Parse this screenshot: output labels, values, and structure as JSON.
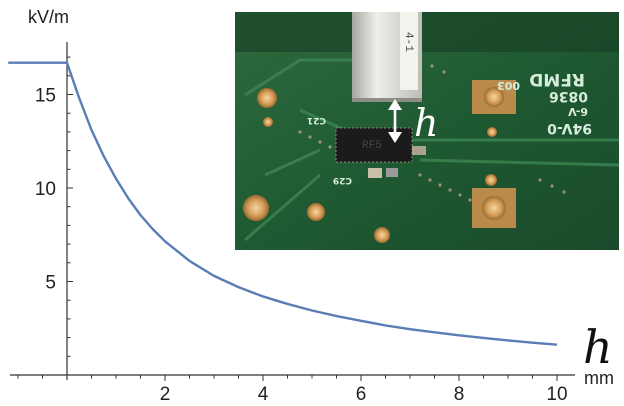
{
  "chart_data": {
    "type": "line",
    "title": "",
    "xlabel": "h",
    "xunit": "mm",
    "ylabel": "",
    "yunit": "kV/m",
    "xlim": [
      -1.2,
      10.2
    ],
    "ylim": [
      0,
      18
    ],
    "x_ticks": [
      2,
      4,
      6,
      8,
      10
    ],
    "y_ticks": [
      5,
      10,
      15
    ],
    "grid": false,
    "series": [
      {
        "color": "#5B7DB6",
        "x": [
          -1.2,
          -1.0,
          -0.5,
          0.0,
          0.25,
          0.5,
          0.75,
          1.0,
          1.25,
          1.5,
          1.75,
          2.0,
          2.5,
          3.0,
          3.5,
          4.0,
          4.5,
          5.0,
          5.5,
          6.0,
          6.5,
          7.0,
          7.5,
          8.0,
          8.5,
          9.0,
          9.5,
          10.0
        ],
        "y": [
          16.7,
          16.7,
          16.7,
          16.7,
          14.8,
          13.1,
          11.7,
          10.5,
          9.45,
          8.55,
          7.8,
          7.15,
          6.1,
          5.3,
          4.7,
          4.2,
          3.8,
          3.45,
          3.15,
          2.9,
          2.65,
          2.45,
          2.28,
          2.12,
          1.98,
          1.85,
          1.73,
          1.62
        ]
      }
    ]
  },
  "inset": {
    "annotation": "h",
    "board_text": [
      "RFMD",
      "003",
      "0836",
      "6-V",
      "94V-0",
      "C29",
      "C21"
    ],
    "probe_label": "4-1"
  }
}
